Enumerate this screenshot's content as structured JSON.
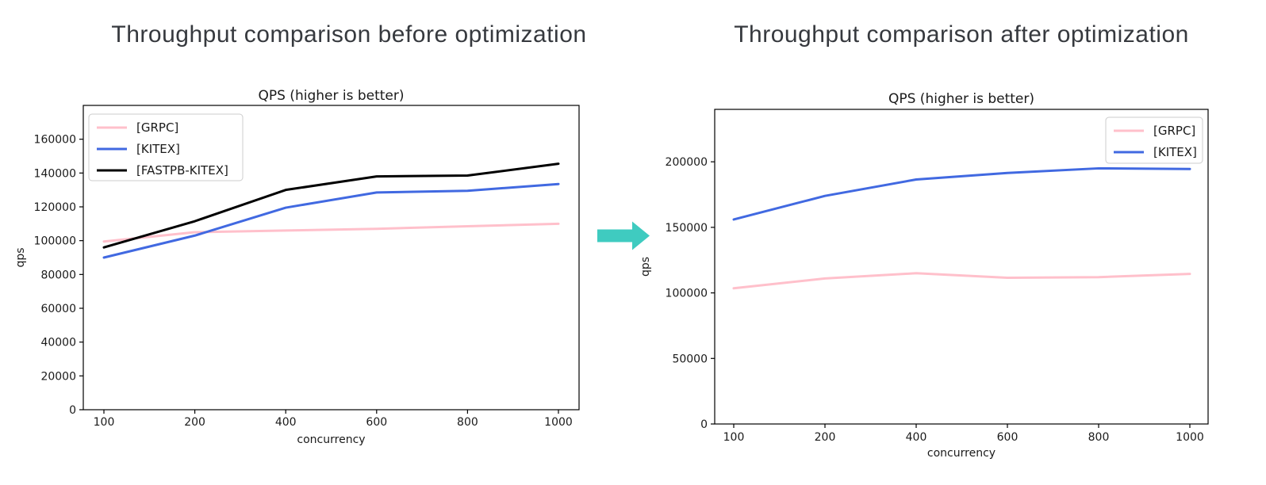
{
  "page": {
    "before_title": "Throughput comparison before optimization",
    "after_title": "Throughput comparison after optimization"
  },
  "arrow": {
    "color": "#3fcbc0"
  },
  "chart_data": [
    {
      "type": "line",
      "title": "QPS (higher is better)",
      "xlabel": "concurrency",
      "ylabel": "qps",
      "x_axis_type": "categorical",
      "categories": [
        "100",
        "200",
        "400",
        "600",
        "800",
        "1000"
      ],
      "ylim": [
        0,
        180000
      ],
      "yticks": [
        0,
        20000,
        40000,
        60000,
        80000,
        100000,
        120000,
        140000,
        160000
      ],
      "grid": false,
      "legend_position": "upper left",
      "series": [
        {
          "name": "[GRPC]",
          "color": "#ffc0cb",
          "values": [
            99500,
            105000,
            106000,
            107000,
            108500,
            110000
          ]
        },
        {
          "name": "[KITEX]",
          "color": "#4169e1",
          "values": [
            90000,
            103000,
            119500,
            128500,
            129500,
            133500
          ]
        },
        {
          "name": "[FASTPB-KITEX]",
          "color": "#000000",
          "values": [
            96000,
            111500,
            130000,
            138000,
            138500,
            145500
          ]
        }
      ]
    },
    {
      "type": "line",
      "title": "QPS (higher is better)",
      "xlabel": "concurrency",
      "ylabel": "qps",
      "x_axis_type": "categorical",
      "categories": [
        "100",
        "200",
        "400",
        "600",
        "800",
        "1000"
      ],
      "ylim": [
        0,
        240000
      ],
      "yticks": [
        0,
        50000,
        100000,
        150000,
        200000
      ],
      "grid": false,
      "legend_position": "upper right",
      "series": [
        {
          "name": "[GRPC]",
          "color": "#ffc0cb",
          "values": [
            103500,
            111000,
            115000,
            111500,
            112000,
            114500
          ]
        },
        {
          "name": "[KITEX]",
          "color": "#4169e1",
          "values": [
            156000,
            174000,
            186500,
            191500,
            195000,
            194500
          ]
        }
      ]
    }
  ]
}
